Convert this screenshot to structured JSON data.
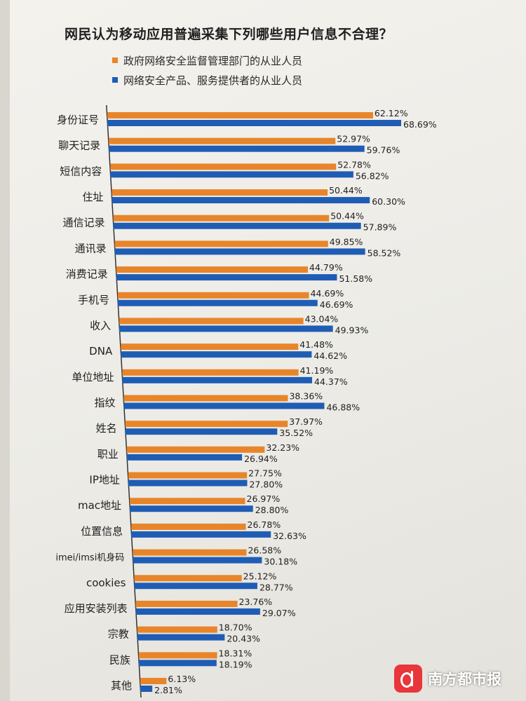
{
  "colors": {
    "orange": "#e8852a",
    "blue": "#1f5db5",
    "axis": "#333333"
  },
  "chart_data": {
    "type": "bar",
    "orientation": "horizontal",
    "title": "网民认为移动应用普遍采集下列哪些用户信息不合理？",
    "legend_position": "top",
    "grid": false,
    "xlim": [
      0,
      80
    ],
    "categories": [
      "身份证号",
      "聊天记录",
      "短信内容",
      "住址",
      "通信记录",
      "通讯录",
      "消费记录",
      "手机号",
      "收入",
      "DNA",
      "单位地址",
      "指纹",
      "姓名",
      "职业",
      "IP地址",
      "mac地址",
      "位置信息",
      "imei/imsi机身码",
      "cookies",
      "应用安装列表",
      "宗教",
      "民族",
      "其他"
    ],
    "series": [
      {
        "name": "政府网络安全监督管理部门的从业人员",
        "values": [
          62.12,
          52.97,
          52.78,
          50.44,
          50.44,
          49.85,
          44.79,
          44.69,
          43.04,
          41.48,
          41.19,
          38.36,
          37.97,
          32.23,
          27.75,
          26.97,
          26.78,
          26.58,
          25.12,
          23.76,
          18.7,
          18.31,
          6.13
        ],
        "labels": [
          "62.12%",
          "52.97%",
          "52.78%",
          "50.44%",
          "50.44%",
          "49.85%",
          "44.79%",
          "44.69%",
          "43.04%",
          "41.48%",
          "41.19%",
          "38.36%",
          "37.97%",
          "32.23%",
          "27.75%",
          "26.97%",
          "26.78%",
          "26.58%",
          "25.12%",
          "23.76%",
          "18.70%",
          "18.31%",
          "6.13%"
        ]
      },
      {
        "name": "网络安全产品、服务提供者的从业人员",
        "values": [
          68.69,
          59.76,
          56.82,
          60.3,
          57.89,
          58.52,
          51.58,
          46.69,
          49.93,
          44.62,
          44.37,
          46.88,
          35.52,
          26.94,
          27.8,
          28.8,
          32.63,
          30.18,
          28.77,
          29.07,
          20.43,
          18.19,
          2.81
        ],
        "labels": [
          "68.69%",
          "59.76%",
          "56.82%",
          "60.30%",
          "57.89%",
          "58.52%",
          "51.58%",
          "46.69%",
          "49.93%",
          "44.62%",
          "44.37%",
          "46.88%",
          "35.52%",
          "26.94%",
          "27.80%",
          "28.80%",
          "32.63%",
          "30.18%",
          "28.77%",
          "29.07%",
          "20.43%",
          "18.19%",
          "2.81%"
        ]
      }
    ]
  },
  "watermark": {
    "text": "南方都市报",
    "logo_icon": "nd-logo-icon"
  }
}
